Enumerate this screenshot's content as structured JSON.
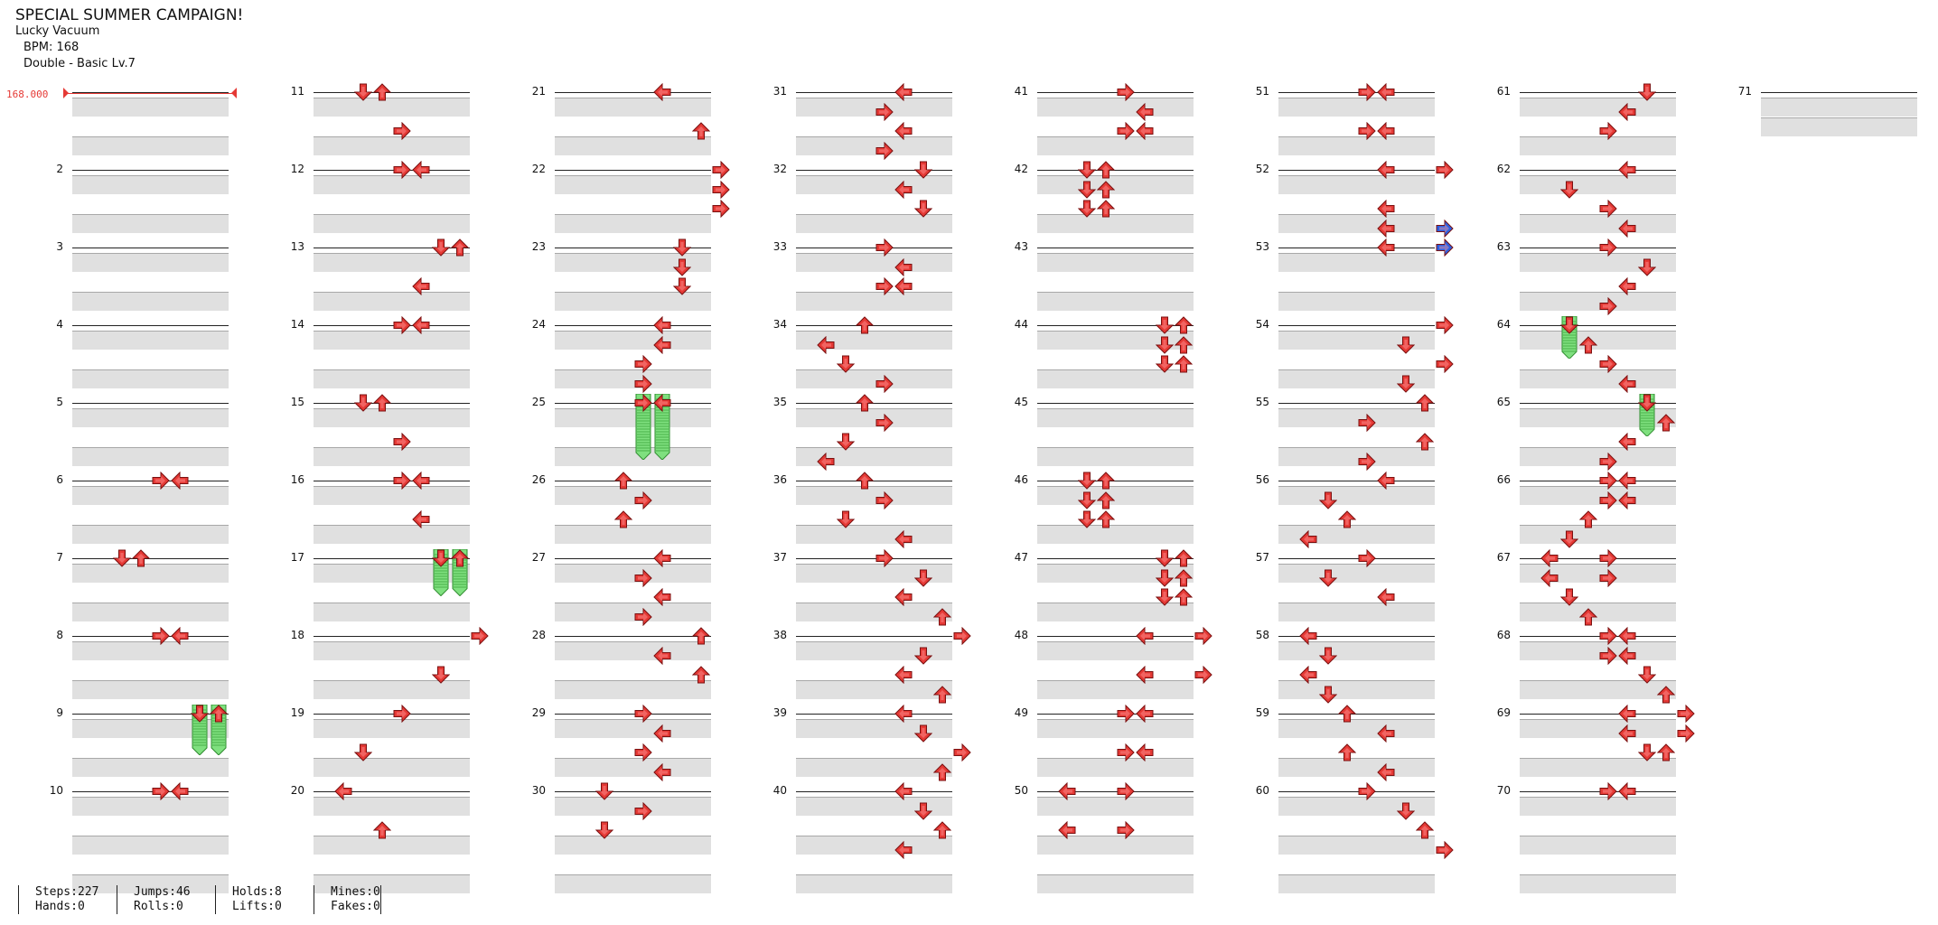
{
  "header": {
    "title": "SPECIAL SUMMER CAMPAIGN!",
    "song": "Lucky Vacuum",
    "bpm": "BPM: 168",
    "difficulty": "Double - Basic  Lv.7"
  },
  "bpm_marker": "168.000",
  "colors": {
    "note_red": "#e53935",
    "note_blue": "#2c5fe0",
    "hold_green": "#7fe07f"
  },
  "measures": [
    {
      "n": "",
      "notes": []
    },
    {
      "n": "2",
      "notes": []
    },
    {
      "n": "3",
      "notes": []
    },
    {
      "n": "4",
      "notes": []
    },
    {
      "n": "5",
      "notes": []
    },
    {
      "n": "6",
      "notes": [
        [
          0,
          "right",
          3
        ],
        [
          0,
          "left",
          4
        ]
      ]
    },
    {
      "n": "7",
      "notes": [
        [
          0,
          "down",
          1
        ],
        [
          0,
          "up",
          2
        ]
      ]
    },
    {
      "n": "8",
      "notes": [
        [
          0,
          "right",
          3
        ],
        [
          0,
          "left",
          4
        ]
      ]
    },
    {
      "n": "9",
      "holds": [
        [
          0,
          "down",
          5,
          2.6
        ],
        [
          0,
          "up",
          6,
          2.6
        ]
      ],
      "notes": [
        [
          0,
          "down",
          5
        ],
        [
          0,
          "up",
          6
        ]
      ]
    },
    {
      "n": "10",
      "notes": [
        [
          0,
          "right",
          3
        ],
        [
          0,
          "left",
          4
        ]
      ]
    },
    {
      "n": "11",
      "notes": [
        [
          0,
          "down",
          1
        ],
        [
          0,
          "up",
          2
        ],
        [
          2,
          "right",
          3
        ]
      ]
    },
    {
      "n": "12",
      "notes": [
        [
          0,
          "right",
          3
        ],
        [
          0,
          "left",
          4
        ]
      ]
    },
    {
      "n": "13",
      "notes": [
        [
          0,
          "down",
          5
        ],
        [
          0,
          "up",
          6
        ],
        [
          2,
          "left",
          4
        ]
      ]
    },
    {
      "n": "14",
      "notes": [
        [
          0,
          "right",
          3
        ],
        [
          0,
          "left",
          4
        ]
      ]
    },
    {
      "n": "15",
      "notes": [
        [
          0,
          "down",
          1
        ],
        [
          0,
          "up",
          2
        ],
        [
          2,
          "right",
          3
        ]
      ]
    },
    {
      "n": "16",
      "notes": [
        [
          0,
          "right",
          3
        ],
        [
          0,
          "left",
          4
        ],
        [
          2,
          "left",
          4
        ]
      ]
    },
    {
      "n": "17",
      "holds": [
        [
          0,
          "down",
          5,
          2.4
        ],
        [
          0,
          "up",
          6,
          2.4
        ]
      ],
      "notes": [
        [
          0,
          "down",
          5
        ],
        [
          0,
          "up",
          6
        ]
      ]
    },
    {
      "n": "18",
      "notes": [
        [
          0,
          "right",
          7
        ],
        [
          2,
          "down",
          5
        ]
      ]
    },
    {
      "n": "19",
      "notes": [
        [
          0,
          "right",
          3
        ],
        [
          2,
          "down",
          1
        ]
      ]
    },
    {
      "n": "20",
      "notes": [
        [
          0,
          "left",
          0
        ],
        [
          2,
          "up",
          2
        ]
      ]
    },
    {
      "n": "21",
      "notes": [
        [
          0,
          "left",
          4
        ],
        [
          2,
          "up",
          6
        ]
      ]
    },
    {
      "n": "22",
      "notes": [
        [
          0,
          "right",
          7
        ],
        [
          1,
          "right",
          7
        ],
        [
          2,
          "right",
          7
        ]
      ]
    },
    {
      "n": "23",
      "notes": [
        [
          0,
          "down",
          5
        ],
        [
          1,
          "down",
          5
        ],
        [
          2,
          "down",
          5
        ]
      ]
    },
    {
      "n": "24",
      "notes": [
        [
          0,
          "left",
          4
        ],
        [
          1,
          "left",
          4
        ],
        [
          2,
          "right",
          3
        ],
        [
          3,
          "right",
          3
        ]
      ]
    },
    {
      "n": "25",
      "holds": [
        [
          0,
          "down",
          3,
          3.4
        ],
        [
          0,
          "up",
          4,
          3.4
        ]
      ],
      "notes": [
        [
          0,
          "right",
          3
        ],
        [
          0,
          "left",
          4
        ]
      ]
    },
    {
      "n": "26",
      "notes": [
        [
          0,
          "up",
          2
        ],
        [
          1,
          "right",
          3
        ],
        [
          2,
          "up",
          2
        ]
      ]
    },
    {
      "n": "27",
      "notes": [
        [
          0,
          "left",
          4
        ],
        [
          1,
          "right",
          3
        ],
        [
          2,
          "left",
          4
        ],
        [
          3,
          "right",
          3
        ]
      ]
    },
    {
      "n": "28",
      "notes": [
        [
          0,
          "up",
          6
        ],
        [
          1,
          "left",
          4
        ],
        [
          2,
          "up",
          6
        ]
      ]
    },
    {
      "n": "29",
      "notes": [
        [
          0,
          "right",
          3
        ],
        [
          1,
          "left",
          4
        ],
        [
          2,
          "right",
          3
        ],
        [
          3,
          "left",
          4
        ]
      ]
    },
    {
      "n": "30",
      "notes": [
        [
          0,
          "down",
          1
        ],
        [
          1,
          "right",
          3
        ],
        [
          2,
          "down",
          1
        ]
      ]
    },
    {
      "n": "31",
      "notes": [
        [
          0,
          "left",
          4
        ],
        [
          1,
          "right",
          3
        ],
        [
          2,
          "left",
          4
        ],
        [
          3,
          "right",
          3
        ]
      ]
    },
    {
      "n": "32",
      "notes": [
        [
          0,
          "down",
          5
        ],
        [
          1,
          "left",
          4
        ],
        [
          2,
          "down",
          5
        ]
      ]
    },
    {
      "n": "33",
      "notes": [
        [
          0,
          "right",
          3
        ],
        [
          1,
          "left",
          4
        ],
        [
          2,
          "right",
          3
        ],
        [
          2,
          "left",
          4
        ]
      ]
    },
    {
      "n": "34",
      "notes": [
        [
          0,
          "up",
          2
        ],
        [
          1,
          "left",
          0
        ],
        [
          2,
          "down",
          1
        ],
        [
          3,
          "right",
          3
        ]
      ]
    },
    {
      "n": "35",
      "notes": [
        [
          0,
          "up",
          2
        ],
        [
          1,
          "right",
          3
        ],
        [
          2,
          "down",
          1
        ],
        [
          3,
          "left",
          0
        ]
      ]
    },
    {
      "n": "36",
      "notes": [
        [
          0,
          "up",
          2
        ],
        [
          1,
          "right",
          3
        ],
        [
          2,
          "down",
          1
        ],
        [
          3,
          "left",
          4
        ]
      ]
    },
    {
      "n": "37",
      "notes": [
        [
          0,
          "right",
          3
        ],
        [
          1,
          "down",
          5
        ],
        [
          2,
          "left",
          4
        ],
        [
          3,
          "up",
          6
        ]
      ]
    },
    {
      "n": "38",
      "notes": [
        [
          0,
          "right",
          7
        ],
        [
          1,
          "down",
          5
        ],
        [
          2,
          "left",
          4
        ],
        [
          3,
          "up",
          6
        ]
      ]
    },
    {
      "n": "39",
      "notes": [
        [
          0,
          "left",
          4
        ],
        [
          1,
          "down",
          5
        ],
        [
          2,
          "right",
          7
        ],
        [
          3,
          "up",
          6
        ]
      ]
    },
    {
      "n": "40",
      "notes": [
        [
          0,
          "left",
          4
        ],
        [
          1,
          "down",
          5
        ],
        [
          2,
          "up",
          6
        ],
        [
          3,
          "left",
          4
        ]
      ]
    },
    {
      "n": "41",
      "notes": [
        [
          0,
          "right",
          3
        ],
        [
          1,
          "left",
          4
        ],
        [
          2,
          "right",
          3
        ],
        [
          2,
          "left",
          4
        ]
      ]
    },
    {
      "n": "42",
      "notes": [
        [
          0,
          "down",
          1
        ],
        [
          0,
          "up",
          2
        ],
        [
          1,
          "down",
          1
        ],
        [
          1,
          "up",
          2
        ],
        [
          2,
          "down",
          1
        ],
        [
          2,
          "up",
          2
        ]
      ]
    },
    {
      "n": "43",
      "notes": []
    },
    {
      "n": "44",
      "notes": [
        [
          0,
          "down",
          5
        ],
        [
          0,
          "up",
          6
        ],
        [
          1,
          "down",
          5
        ],
        [
          1,
          "up",
          6
        ],
        [
          2,
          "down",
          5
        ],
        [
          2,
          "up",
          6
        ]
      ]
    },
    {
      "n": "45",
      "notes": []
    },
    {
      "n": "46",
      "notes": [
        [
          0,
          "down",
          1
        ],
        [
          0,
          "up",
          2
        ],
        [
          1,
          "down",
          1
        ],
        [
          1,
          "up",
          2
        ],
        [
          2,
          "down",
          1
        ],
        [
          2,
          "up",
          2
        ]
      ]
    },
    {
      "n": "47",
      "notes": [
        [
          0,
          "down",
          5
        ],
        [
          0,
          "up",
          6
        ],
        [
          1,
          "down",
          5
        ],
        [
          1,
          "up",
          6
        ],
        [
          2,
          "down",
          5
        ],
        [
          2,
          "up",
          6
        ]
      ]
    },
    {
      "n": "48",
      "notes": [
        [
          0,
          "left",
          4
        ],
        [
          0,
          "right",
          7
        ],
        [
          2,
          "left",
          4
        ],
        [
          2,
          "right",
          7
        ]
      ]
    },
    {
      "n": "49",
      "notes": [
        [
          0,
          "right",
          3
        ],
        [
          0,
          "left",
          4
        ],
        [
          2,
          "right",
          3
        ],
        [
          2,
          "left",
          4
        ]
      ]
    },
    {
      "n": "50",
      "notes": [
        [
          0,
          "left",
          0
        ],
        [
          0,
          "right",
          3
        ],
        [
          2,
          "left",
          0
        ],
        [
          2,
          "right",
          3
        ]
      ]
    },
    {
      "n": "51",
      "notes": [
        [
          0,
          "right",
          3
        ],
        [
          0,
          "left",
          4
        ],
        [
          2,
          "right",
          3
        ],
        [
          2,
          "left",
          4
        ]
      ]
    },
    {
      "n": "52",
      "notes": [
        [
          0,
          "left",
          4
        ],
        [
          0,
          "right",
          7
        ],
        [
          2,
          "left",
          4
        ]
      ]
    },
    {
      "n": "53",
      "blue": [
        [
          -1,
          "right",
          7
        ],
        [
          0,
          "right",
          7
        ]
      ],
      "notes": [
        [
          -1,
          "left",
          4
        ],
        [
          0,
          "left",
          4
        ]
      ]
    },
    {
      "n": "54",
      "notes": [
        [
          0,
          "right",
          7
        ],
        [
          1,
          "down",
          5
        ],
        [
          2,
          "right",
          7
        ],
        [
          3,
          "down",
          5
        ]
      ]
    },
    {
      "n": "55",
      "notes": [
        [
          0,
          "up",
          6
        ],
        [
          1,
          "right",
          3
        ],
        [
          2,
          "up",
          6
        ],
        [
          3,
          "right",
          3
        ]
      ]
    },
    {
      "n": "56",
      "notes": [
        [
          0,
          "left",
          4
        ],
        [
          1,
          "down",
          1
        ],
        [
          2,
          "up",
          2
        ],
        [
          3,
          "left",
          0
        ]
      ]
    },
    {
      "n": "57",
      "notes": [
        [
          0,
          "right",
          3
        ],
        [
          1,
          "down",
          1
        ],
        [
          2,
          "left",
          4
        ]
      ]
    },
    {
      "n": "58",
      "notes": [
        [
          0,
          "left",
          0
        ],
        [
          1,
          "down",
          1
        ],
        [
          2,
          "left",
          0
        ],
        [
          3,
          "down",
          1
        ]
      ]
    },
    {
      "n": "59",
      "notes": [
        [
          0,
          "up",
          2
        ],
        [
          1,
          "left",
          4
        ],
        [
          2,
          "up",
          2
        ],
        [
          3,
          "left",
          4
        ]
      ]
    },
    {
      "n": "60",
      "notes": [
        [
          0,
          "right",
          3
        ],
        [
          1,
          "down",
          5
        ],
        [
          2,
          "up",
          6
        ],
        [
          3,
          "right",
          7
        ]
      ]
    },
    {
      "n": "61",
      "notes": [
        [
          0,
          "down",
          5
        ],
        [
          1,
          "left",
          4
        ],
        [
          2,
          "right",
          3
        ]
      ]
    },
    {
      "n": "62",
      "notes": [
        [
          0,
          "left",
          4
        ],
        [
          1,
          "down",
          1
        ],
        [
          2,
          "right",
          3
        ],
        [
          3,
          "left",
          4
        ]
      ]
    },
    {
      "n": "63",
      "notes": [
        [
          0,
          "right",
          3
        ],
        [
          1,
          "down",
          5
        ],
        [
          2,
          "left",
          4
        ],
        [
          3,
          "right",
          3
        ]
      ]
    },
    {
      "n": "64",
      "holds": [
        [
          0,
          "down",
          1,
          2.2
        ]
      ],
      "notes": [
        [
          0,
          "down",
          1
        ],
        [
          1,
          "up",
          2
        ],
        [
          2,
          "right",
          3
        ],
        [
          3,
          "left",
          4
        ]
      ]
    },
    {
      "n": "65",
      "holds": [
        [
          0,
          "down",
          5,
          2.2
        ]
      ],
      "notes": [
        [
          0,
          "down",
          5
        ],
        [
          1,
          "up",
          6
        ],
        [
          2,
          "left",
          4
        ],
        [
          3,
          "right",
          3
        ]
      ]
    },
    {
      "n": "66",
      "notes": [
        [
          0,
          "right",
          3
        ],
        [
          0,
          "left",
          4
        ],
        [
          1,
          "right",
          3
        ],
        [
          1,
          "left",
          4
        ],
        [
          2,
          "up",
          2
        ],
        [
          3,
          "down",
          1
        ]
      ]
    },
    {
      "n": "67",
      "notes": [
        [
          0,
          "left",
          0
        ],
        [
          0,
          "right",
          3
        ],
        [
          1,
          "left",
          0
        ],
        [
          1,
          "right",
          3
        ],
        [
          2,
          "down",
          1
        ],
        [
          3,
          "up",
          2
        ]
      ]
    },
    {
      "n": "68",
      "notes": [
        [
          0,
          "right",
          3
        ],
        [
          0,
          "left",
          4
        ],
        [
          1,
          "right",
          3
        ],
        [
          1,
          "left",
          4
        ],
        [
          2,
          "down",
          5
        ],
        [
          3,
          "up",
          6
        ]
      ]
    },
    {
      "n": "69",
      "notes": [
        [
          0,
          "left",
          4
        ],
        [
          0,
          "right",
          7
        ],
        [
          1,
          "left",
          4
        ],
        [
          1,
          "right",
          7
        ],
        [
          2,
          "down",
          5
        ],
        [
          2,
          "up",
          6
        ]
      ]
    },
    {
      "n": "70",
      "notes": [
        [
          0,
          "right",
          3
        ],
        [
          0,
          "left",
          4
        ]
      ]
    },
    {
      "n": "71",
      "notes": [],
      "short": true
    }
  ],
  "stats": [
    {
      "a": "Steps:227",
      "b": "Hands:0"
    },
    {
      "a": "Jumps:46",
      "b": "Rolls:0"
    },
    {
      "a": "Holds:8",
      "b": "Lifts:0"
    },
    {
      "a": "Mines:0",
      "b": "Fakes:0"
    }
  ]
}
